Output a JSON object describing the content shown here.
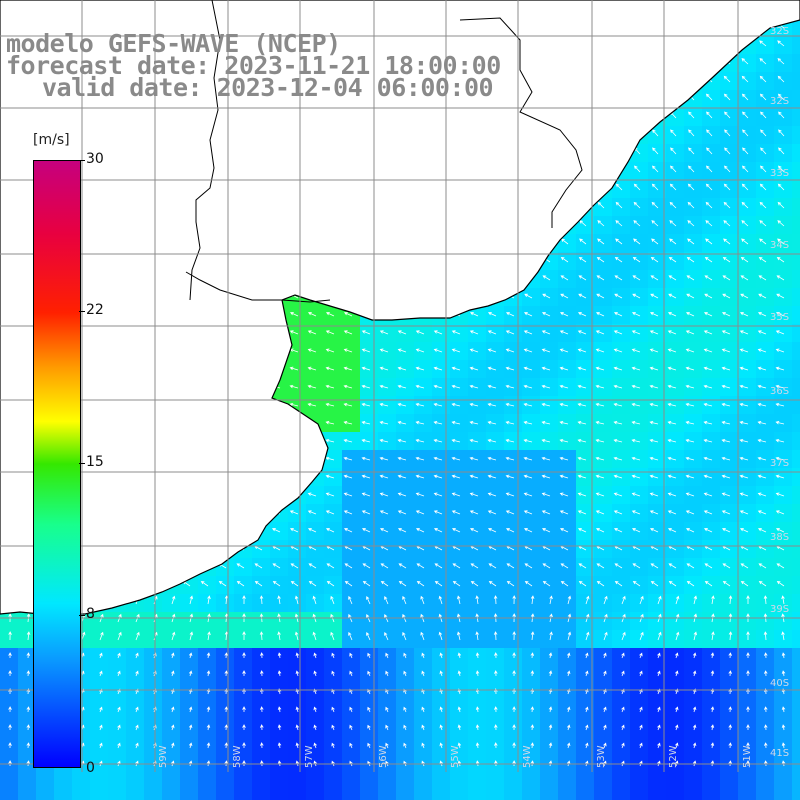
{
  "title": {
    "line1": "modelo GEFS-WAVE (NCEP)",
    "line2": "forecast date: 2023-11-21 18:00:00",
    "line3": "valid date: 2023-12-04 06:00:00"
  },
  "colorbar": {
    "unit": "[m/s]",
    "ticks": [
      "30",
      "22",
      "15",
      "8",
      "0"
    ],
    "min": 0,
    "max": 30
  },
  "latitude_labels": [
    "32S",
    "33S",
    "34S",
    "35S",
    "36S",
    "37S",
    "38S",
    "39S",
    "40S",
    "41S"
  ],
  "longitude_labels": [
    "59W",
    "58W",
    "57W",
    "56W",
    "55W",
    "54W",
    "53W",
    "52W",
    "51W"
  ],
  "colors": {
    "land": "#ffffff",
    "coast": "#000000",
    "grid": "#8c8c8c",
    "arrow": "#ffffff",
    "title_text": "#8a8a8a"
  }
}
